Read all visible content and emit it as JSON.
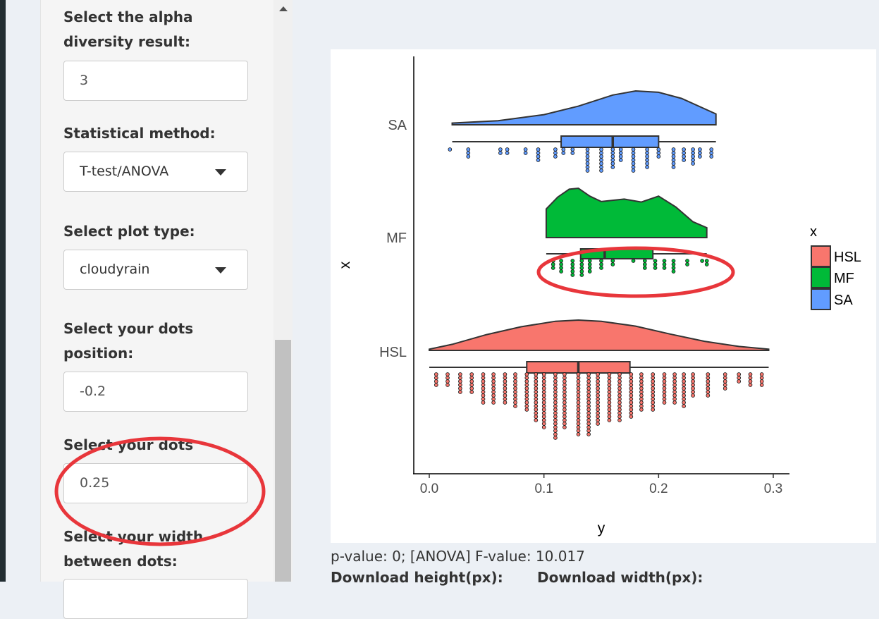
{
  "sidebar": {
    "alpha": {
      "label": "Select the alpha diversity result:",
      "value": "3"
    },
    "method": {
      "label": "Statistical method:",
      "selected": "T-test/ANOVA"
    },
    "plot_type": {
      "label": "Select plot type:",
      "selected": "cloudyrain"
    },
    "dots_position": {
      "label": "Select your dots position:",
      "value": "-0.2"
    },
    "dots_size": {
      "label": "Select your dots size:",
      "value": "0.25"
    },
    "width_dots": {
      "label": "Select your width between dots:"
    }
  },
  "main": {
    "pvalue_text": "p-value: 0; [ANOVA] F-value: 10.017",
    "download_height_label": "Download height(px):",
    "download_width_label": "Download width(px):"
  },
  "colors": {
    "HSL": "#f8766d",
    "MF": "#00ba38",
    "SA": "#619cff",
    "annotation": "#e8363b"
  },
  "chart_data": {
    "type": "raincloud",
    "xlabel": "y",
    "ylabel": "x",
    "xlim": [
      -0.015,
      0.315
    ],
    "x_ticks": [
      "0.0",
      "0.1",
      "0.2",
      "0.3"
    ],
    "x_tick_values": [
      0.0,
      0.1,
      0.2,
      0.3
    ],
    "categories": [
      "SA",
      "MF",
      "HSL"
    ],
    "legend": {
      "title": "x",
      "entries": [
        "HSL",
        "MF",
        "SA"
      ],
      "placement": "right"
    },
    "series": [
      {
        "name": "SA",
        "color": "#619cff",
        "range": [
          0.02,
          0.25
        ],
        "box": {
          "q1": 0.115,
          "median": 0.16,
          "q3": 0.2
        },
        "density": [
          [
            0.02,
            0.05
          ],
          [
            0.06,
            0.12
          ],
          [
            0.1,
            0.3
          ],
          [
            0.13,
            0.55
          ],
          [
            0.16,
            0.88
          ],
          [
            0.18,
            1.0
          ],
          [
            0.2,
            0.96
          ],
          [
            0.22,
            0.78
          ],
          [
            0.25,
            0.32
          ]
        ],
        "dots": [
          [
            0.018,
            1
          ],
          [
            0.034,
            3
          ],
          [
            0.062,
            2
          ],
          [
            0.068,
            2
          ],
          [
            0.084,
            2
          ],
          [
            0.095,
            4
          ],
          [
            0.11,
            3
          ],
          [
            0.117,
            2
          ],
          [
            0.125,
            2
          ],
          [
            0.138,
            7
          ],
          [
            0.15,
            7
          ],
          [
            0.16,
            6
          ],
          [
            0.167,
            4
          ],
          [
            0.178,
            7
          ],
          [
            0.19,
            6
          ],
          [
            0.2,
            3
          ],
          [
            0.213,
            6
          ],
          [
            0.222,
            4
          ],
          [
            0.23,
            5
          ],
          [
            0.236,
            3
          ],
          [
            0.246,
            3
          ]
        ]
      },
      {
        "name": "MF",
        "color": "#00ba38",
        "range": [
          0.102,
          0.242
        ],
        "box": {
          "q1": 0.132,
          "median": 0.153,
          "q3": 0.195
        },
        "density": [
          [
            0.102,
            0.58
          ],
          [
            0.112,
            0.82
          ],
          [
            0.122,
            0.98
          ],
          [
            0.13,
            1.0
          ],
          [
            0.14,
            0.84
          ],
          [
            0.15,
            0.73
          ],
          [
            0.17,
            0.78
          ],
          [
            0.185,
            0.72
          ],
          [
            0.2,
            0.84
          ],
          [
            0.215,
            0.62
          ],
          [
            0.23,
            0.32
          ],
          [
            0.242,
            0.2
          ]
        ],
        "dots": [
          [
            0.108,
            3
          ],
          [
            0.115,
            4
          ],
          [
            0.125,
            5
          ],
          [
            0.133,
            5
          ],
          [
            0.14,
            4
          ],
          [
            0.15,
            3
          ],
          [
            0.16,
            2
          ],
          [
            0.178,
            1
          ],
          [
            0.188,
            3
          ],
          [
            0.197,
            3
          ],
          [
            0.205,
            3
          ],
          [
            0.213,
            4
          ],
          [
            0.225,
            2
          ],
          [
            0.238,
            1
          ],
          [
            0.242,
            2
          ]
        ]
      },
      {
        "name": "HSL",
        "color": "#f8766d",
        "range": [
          0.0,
          0.296
        ],
        "box": {
          "q1": 0.085,
          "median": 0.13,
          "q3": 0.175
        },
        "density": [
          [
            0.0,
            0.04
          ],
          [
            0.02,
            0.2
          ],
          [
            0.05,
            0.52
          ],
          [
            0.08,
            0.78
          ],
          [
            0.11,
            0.96
          ],
          [
            0.13,
            1.0
          ],
          [
            0.15,
            0.96
          ],
          [
            0.18,
            0.8
          ],
          [
            0.21,
            0.54
          ],
          [
            0.24,
            0.3
          ],
          [
            0.27,
            0.13
          ],
          [
            0.296,
            0.04
          ]
        ],
        "dots": [
          [
            0.006,
            4
          ],
          [
            0.016,
            4
          ],
          [
            0.027,
            6
          ],
          [
            0.037,
            6
          ],
          [
            0.047,
            9
          ],
          [
            0.056,
            9
          ],
          [
            0.066,
            9
          ],
          [
            0.075,
            10
          ],
          [
            0.085,
            11
          ],
          [
            0.093,
            14
          ],
          [
            0.1,
            16
          ],
          [
            0.11,
            19
          ],
          [
            0.118,
            16
          ],
          [
            0.13,
            18
          ],
          [
            0.139,
            18
          ],
          [
            0.147,
            15
          ],
          [
            0.157,
            14
          ],
          [
            0.166,
            14
          ],
          [
            0.176,
            13
          ],
          [
            0.185,
            11
          ],
          [
            0.195,
            11
          ],
          [
            0.205,
            9
          ],
          [
            0.214,
            9
          ],
          [
            0.222,
            10
          ],
          [
            0.23,
            7
          ],
          [
            0.243,
            7
          ],
          [
            0.258,
            5
          ],
          [
            0.27,
            3
          ],
          [
            0.28,
            4
          ],
          [
            0.29,
            4
          ]
        ]
      }
    ]
  }
}
